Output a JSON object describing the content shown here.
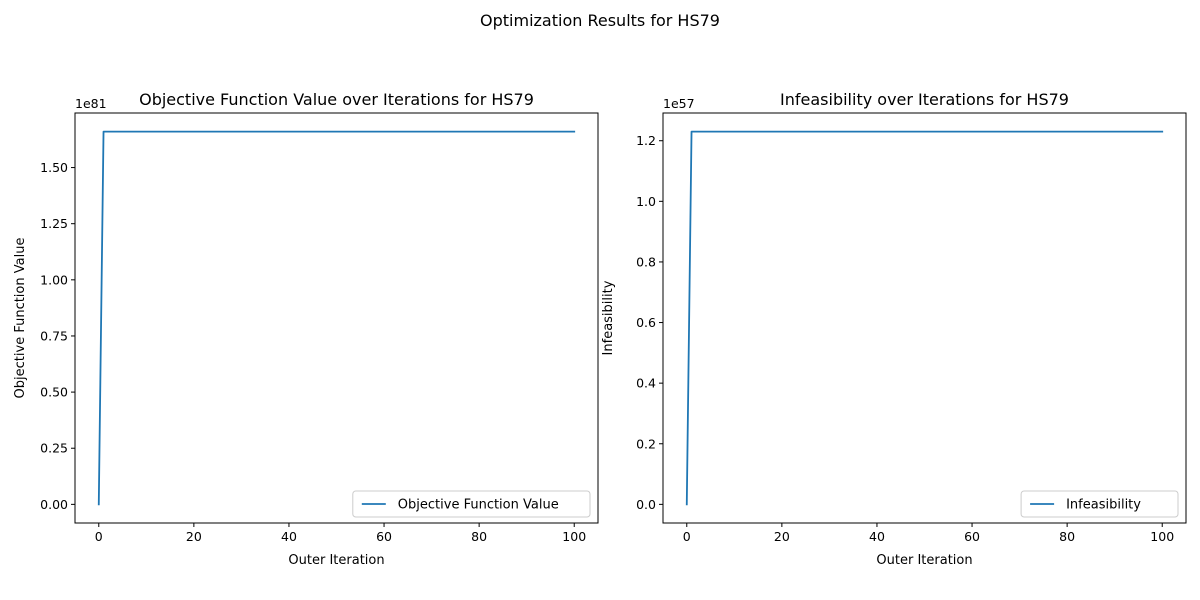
{
  "suptitle": "Optimization Results for HS79",
  "chart_data": [
    {
      "type": "line",
      "title": "Objective Function Value over Iterations for HS79",
      "xlabel": "Outer Iteration",
      "ylabel": "Objective Function Value",
      "offset_text": "1e81",
      "xlim": [
        -5,
        105
      ],
      "ylim": [
        -0.083,
        1.743
      ],
      "xticks": [
        0,
        20,
        40,
        60,
        80,
        100
      ],
      "xtick_labels": [
        "0",
        "20",
        "40",
        "60",
        "80",
        "100"
      ],
      "yticks": [
        0,
        0.25,
        0.5,
        0.75,
        1.0,
        1.25,
        1.5
      ],
      "ytick_labels": [
        "0.00",
        "0.25",
        "0.50",
        "0.75",
        "1.00",
        "1.25",
        "1.50"
      ],
      "legend": "lower right",
      "series": [
        {
          "name": "Objective Function Value",
          "color": "#1f77b4",
          "x": [
            0,
            1,
            100
          ],
          "y": [
            0,
            1.66,
            1.66
          ]
        }
      ]
    },
    {
      "type": "line",
      "title": "Infeasibility over Iterations for HS79",
      "xlabel": "Outer Iteration",
      "ylabel": "Infeasibility",
      "offset_text": "1e57",
      "xlim": [
        -5,
        105
      ],
      "ylim": [
        -0.0615,
        1.2915
      ],
      "xticks": [
        0,
        20,
        40,
        60,
        80,
        100
      ],
      "xtick_labels": [
        "0",
        "20",
        "40",
        "60",
        "80",
        "100"
      ],
      "yticks": [
        0,
        0.2,
        0.4,
        0.6,
        0.8,
        1.0,
        1.2
      ],
      "ytick_labels": [
        "0.0",
        "0.2",
        "0.4",
        "0.6",
        "0.8",
        "1.0",
        "1.2"
      ],
      "legend": "lower right",
      "series": [
        {
          "name": "Infeasibility",
          "color": "#1f77b4",
          "x": [
            0,
            1,
            100
          ],
          "y": [
            0,
            1.23,
            1.23
          ]
        }
      ]
    }
  ]
}
